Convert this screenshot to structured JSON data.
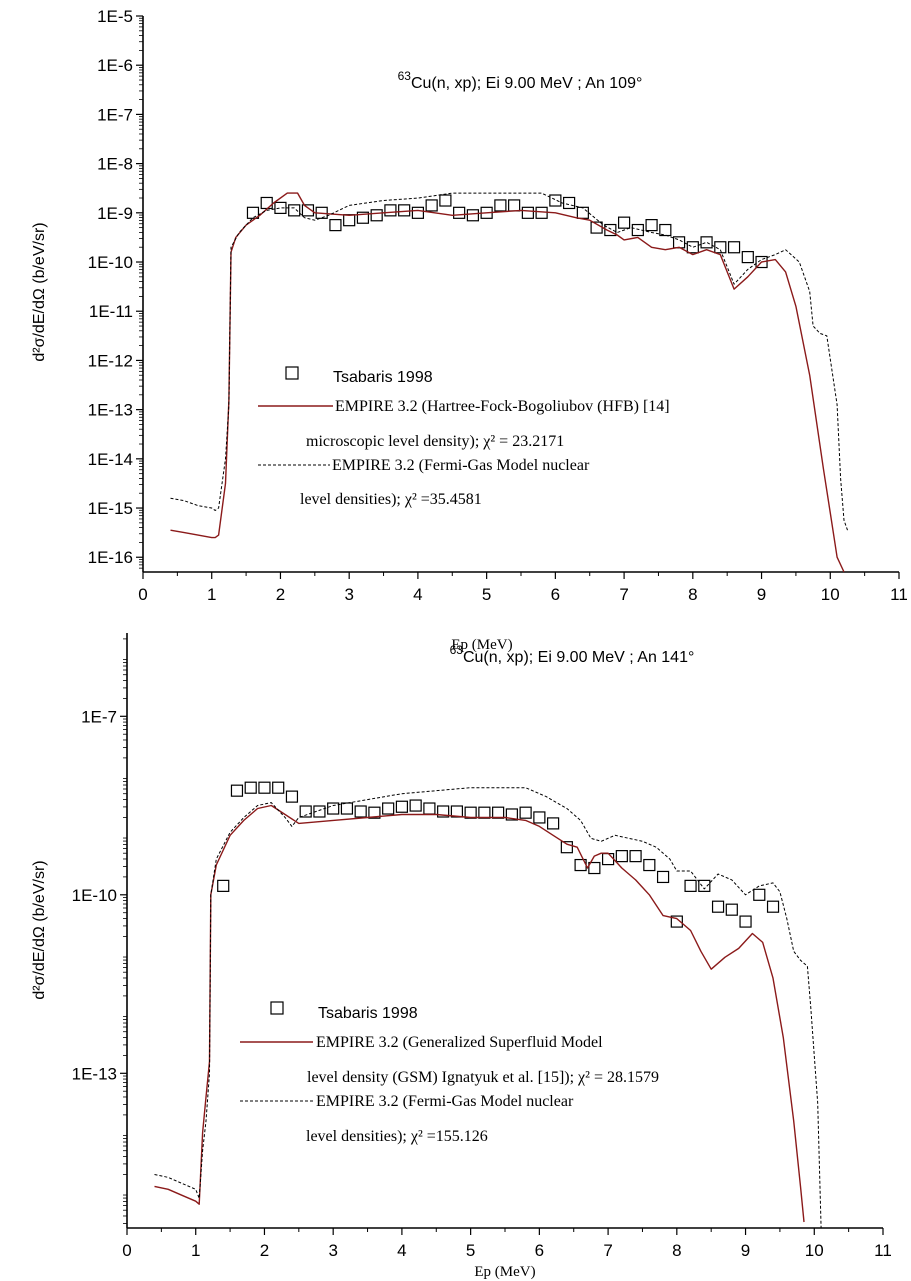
{
  "chart_data": [
    {
      "type": "line",
      "title_mass": "63",
      "title": "Cu(n, xp); Ei 9.00 MeV ; An 109°",
      "xlabel": "Ep (MeV)",
      "ylabel": "d²σ/dE/dΩ (b/eV/sr)",
      "xlim": [
        0,
        11
      ],
      "ylim_log10": [
        -16.3,
        -5
      ],
      "y_scale": "log",
      "x_ticks": [
        "0",
        "1",
        "2",
        "3",
        "4",
        "5",
        "6",
        "7",
        "8",
        "9",
        "10",
        "11"
      ],
      "y_ticks": [
        "1E-5",
        "1E-6",
        "1E-7",
        "1E-8",
        "1E-9",
        "1E-10",
        "1E-11",
        "1E-12",
        "1E-13",
        "1E-14",
        "1E-15",
        "1E-16"
      ],
      "legend": {
        "placement": "lower-center",
        "entries": [
          {
            "key": "exp",
            "lines": [
              "Tsabaris 1998"
            ]
          },
          {
            "key": "hfb",
            "lines": [
              "EMPIRE 3.2 (Hartree-Fock-Bogoliubov (HFB) [14]",
              "microscopic level density); χ² = 23.2171"
            ]
          },
          {
            "key": "fgm",
            "lines": [
              "EMPIRE 3.2 (Fermi-Gas Model nuclear",
              "level densities); χ² =35.4581"
            ]
          }
        ]
      },
      "colors": {
        "hfb": "#8b1a1a",
        "fgm": "#000000",
        "exp": "#000000"
      },
      "series": [
        {
          "name": "Tsabaris 1998",
          "key": "exp",
          "style": "open-square",
          "x": [
            1.6,
            1.8,
            2.0,
            2.2,
            2.4,
            2.6,
            2.8,
            3.0,
            3.2,
            3.4,
            3.6,
            3.8,
            4.0,
            4.2,
            4.4,
            4.6,
            4.8,
            5.0,
            5.2,
            5.4,
            5.6,
            5.8,
            6.0,
            6.2,
            6.4,
            6.6,
            6.8,
            7.0,
            7.2,
            7.4,
            7.6,
            7.8,
            8.0,
            8.2,
            8.4,
            8.6,
            8.8,
            9.0
          ],
          "y": [
            -9.0,
            -8.8,
            -8.9,
            -8.95,
            -8.95,
            -9.0,
            -9.25,
            -9.15,
            -9.1,
            -9.05,
            -8.95,
            -8.95,
            -9.0,
            -8.85,
            -8.75,
            -9.0,
            -9.05,
            -9.0,
            -8.85,
            -8.85,
            -9.0,
            -9.0,
            -8.75,
            -8.8,
            -9.0,
            -9.3,
            -9.35,
            -9.2,
            -9.35,
            -9.25,
            -9.35,
            -9.6,
            -9.7,
            -9.6,
            -9.7,
            -9.7,
            -9.9,
            -10.0
          ]
        },
        {
          "name": "EMPIRE 3.2 (HFB)",
          "key": "hfb",
          "style": "solid",
          "x": [
            0.4,
            0.6,
            0.8,
            1.0,
            1.05,
            1.1,
            1.2,
            1.25,
            1.28,
            1.35,
            1.5,
            1.7,
            1.9,
            2.1,
            2.25,
            2.35,
            2.5,
            3.0,
            3.5,
            4.0,
            4.5,
            5.0,
            5.5,
            6.0,
            6.3,
            6.5,
            6.75,
            6.9,
            7.0,
            7.2,
            7.4,
            7.6,
            7.8,
            8.0,
            8.2,
            8.4,
            8.6,
            8.8,
            9.0,
            9.2,
            9.35,
            9.5,
            9.7,
            9.9,
            10.0,
            10.1,
            10.2
          ],
          "y": [
            -15.45,
            -15.5,
            -15.55,
            -15.6,
            -15.6,
            -15.55,
            -14.5,
            -12.8,
            -9.8,
            -9.5,
            -9.25,
            -9.05,
            -8.8,
            -8.6,
            -8.6,
            -8.85,
            -9.0,
            -9.05,
            -9.0,
            -8.95,
            -9.05,
            -9.0,
            -8.95,
            -9.0,
            -9.1,
            -9.15,
            -9.35,
            -9.45,
            -9.55,
            -9.5,
            -9.7,
            -9.75,
            -9.7,
            -9.85,
            -9.75,
            -9.85,
            -10.55,
            -10.3,
            -10.0,
            -9.95,
            -10.2,
            -10.9,
            -12.3,
            -14.2,
            -15.1,
            -16.0,
            -16.6
          ]
        },
        {
          "name": "EMPIRE 3.2 (FGM)",
          "key": "fgm",
          "style": "dashed",
          "x": [
            0.4,
            0.6,
            0.8,
            1.0,
            1.05,
            1.1,
            1.2,
            1.25,
            1.28,
            1.4,
            1.6,
            1.8,
            2.0,
            2.2,
            2.35,
            2.5,
            2.7,
            3.0,
            3.5,
            4.0,
            4.5,
            5.0,
            5.5,
            5.8,
            6.1,
            6.4,
            6.7,
            6.9,
            7.1,
            7.4,
            7.6,
            7.8,
            8.0,
            8.2,
            8.4,
            8.6,
            8.8,
            9.0,
            9.2,
            9.35,
            9.55,
            9.7,
            9.75,
            9.85,
            9.95,
            10.1,
            10.15,
            10.2,
            10.25
          ],
          "y": [
            -14.8,
            -14.85,
            -14.95,
            -15.0,
            -15.05,
            -15.0,
            -14.0,
            -12.9,
            -9.7,
            -9.4,
            -9.1,
            -8.95,
            -8.9,
            -8.9,
            -9.1,
            -9.15,
            -9.05,
            -8.85,
            -8.75,
            -8.7,
            -8.6,
            -8.6,
            -8.6,
            -8.6,
            -8.8,
            -8.9,
            -9.25,
            -9.4,
            -9.3,
            -9.4,
            -9.45,
            -9.55,
            -9.7,
            -9.6,
            -9.75,
            -10.45,
            -10.15,
            -9.95,
            -9.85,
            -9.75,
            -10.0,
            -10.6,
            -11.3,
            -11.45,
            -11.5,
            -12.9,
            -14.4,
            -15.25,
            -15.45
          ]
        }
      ]
    },
    {
      "type": "line",
      "title_mass": "63",
      "title": "Cu(n, xp); Ei 9.00 MeV ; An 141°",
      "xlabel": "Ep (MeV)",
      "ylabel": "d²σ/dE/dΩ (b/eV/sr)",
      "xlim": [
        0,
        11
      ],
      "ylim_log10": [
        -15.6,
        -5.6
      ],
      "y_scale": "log",
      "x_ticks": [
        "0",
        "1",
        "2",
        "3",
        "4",
        "5",
        "6",
        "7",
        "8",
        "9",
        "10",
        "11"
      ],
      "y_ticks": [
        "1E-7",
        "1E-10",
        "1E-13"
      ],
      "legend": {
        "placement": "lower-center",
        "entries": [
          {
            "key": "exp",
            "lines": [
              "Tsabaris 1998"
            ]
          },
          {
            "key": "gsm",
            "lines": [
              "EMPIRE 3.2 (Generalized Superfluid Model",
              "level density (GSM) Ignatyuk et al. [15]); χ² = 28.1579"
            ]
          },
          {
            "key": "fgm",
            "lines": [
              "EMPIRE 3.2 (Fermi-Gas Model nuclear",
              "level densities); χ² =155.126"
            ]
          }
        ]
      },
      "colors": {
        "gsm": "#8b1a1a",
        "fgm": "#000000",
        "exp": "#000000"
      },
      "series": [
        {
          "name": "Tsabaris 1998",
          "key": "exp",
          "style": "open-square",
          "x": [
            1.4,
            1.6,
            1.8,
            2.0,
            2.2,
            2.4,
            2.6,
            2.8,
            3.0,
            3.2,
            3.4,
            3.6,
            3.8,
            4.0,
            4.2,
            4.4,
            4.6,
            4.8,
            5.0,
            5.2,
            5.4,
            5.6,
            5.8,
            6.0,
            6.2,
            6.4,
            6.6,
            6.8,
            7.0,
            7.2,
            7.4,
            7.6,
            7.8,
            8.0,
            8.2,
            8.4,
            8.6,
            8.8,
            9.0,
            9.2,
            9.4
          ],
          "y": [
            -9.85,
            -8.25,
            -8.2,
            -8.2,
            -8.2,
            -8.35,
            -8.6,
            -8.6,
            -8.55,
            -8.55,
            -8.6,
            -8.62,
            -8.55,
            -8.52,
            -8.5,
            -8.55,
            -8.6,
            -8.6,
            -8.62,
            -8.62,
            -8.62,
            -8.65,
            -8.62,
            -8.7,
            -8.8,
            -9.2,
            -9.5,
            -9.55,
            -9.4,
            -9.35,
            -9.35,
            -9.5,
            -9.7,
            -10.45,
            -9.85,
            -9.85,
            -10.2,
            -10.25,
            -10.45,
            -10.0,
            -10.2
          ]
        },
        {
          "name": "EMPIRE 3.2 (GSM)",
          "key": "gsm",
          "style": "solid",
          "x": [
            0.4,
            0.6,
            0.8,
            1.0,
            1.05,
            1.1,
            1.15,
            1.2,
            1.22,
            1.3,
            1.5,
            1.7,
            1.9,
            2.1,
            2.3,
            2.5,
            3.0,
            3.5,
            4.0,
            4.5,
            5.0,
            5.5,
            5.8,
            6.0,
            6.2,
            6.4,
            6.55,
            6.7,
            6.8,
            6.9,
            7.0,
            7.2,
            7.4,
            7.6,
            7.8,
            8.0,
            8.2,
            8.35,
            8.5,
            8.7,
            8.9,
            9.1,
            9.25,
            9.4,
            9.55,
            9.7,
            9.8,
            9.85
          ],
          "y": [
            -14.9,
            -14.95,
            -15.05,
            -15.15,
            -15.2,
            -14.0,
            -13.4,
            -12.8,
            -10.0,
            -9.5,
            -9.0,
            -8.75,
            -8.55,
            -8.5,
            -8.65,
            -8.8,
            -8.75,
            -8.7,
            -8.65,
            -8.65,
            -8.7,
            -8.7,
            -8.75,
            -8.85,
            -9.0,
            -9.15,
            -9.2,
            -9.55,
            -9.35,
            -9.3,
            -9.3,
            -9.55,
            -9.75,
            -10.0,
            -10.35,
            -10.4,
            -10.6,
            -10.95,
            -11.25,
            -11.05,
            -10.9,
            -10.65,
            -10.8,
            -11.4,
            -12.4,
            -13.8,
            -14.9,
            -15.5
          ]
        },
        {
          "name": "EMPIRE 3.2 (FGM)",
          "key": "fgm",
          "style": "dashed",
          "x": [
            0.4,
            0.6,
            0.8,
            1.0,
            1.05,
            1.1,
            1.15,
            1.2,
            1.22,
            1.3,
            1.5,
            1.7,
            1.9,
            2.1,
            2.3,
            2.4,
            2.5,
            3.0,
            3.5,
            4.0,
            4.5,
            5.0,
            5.5,
            5.8,
            6.1,
            6.4,
            6.6,
            6.75,
            6.9,
            7.1,
            7.3,
            7.5,
            7.7,
            7.9,
            8.0,
            8.2,
            8.4,
            8.6,
            8.8,
            9.0,
            9.2,
            9.4,
            9.5,
            9.6,
            9.7,
            9.8,
            9.9,
            9.95,
            10.05,
            10.1
          ],
          "y": [
            -14.7,
            -14.75,
            -14.85,
            -14.95,
            -15.1,
            -14.3,
            -13.8,
            -13.0,
            -10.0,
            -9.4,
            -8.95,
            -8.7,
            -8.5,
            -8.45,
            -8.7,
            -8.85,
            -8.7,
            -8.5,
            -8.4,
            -8.3,
            -8.25,
            -8.2,
            -8.2,
            -8.2,
            -8.35,
            -8.55,
            -8.75,
            -9.05,
            -9.1,
            -9.0,
            -9.05,
            -9.1,
            -9.2,
            -9.4,
            -9.6,
            -9.6,
            -9.9,
            -9.65,
            -9.75,
            -10.0,
            -9.85,
            -9.8,
            -9.95,
            -10.4,
            -10.95,
            -11.1,
            -11.2,
            -11.9,
            -13.5,
            -15.6
          ]
        }
      ]
    }
  ]
}
